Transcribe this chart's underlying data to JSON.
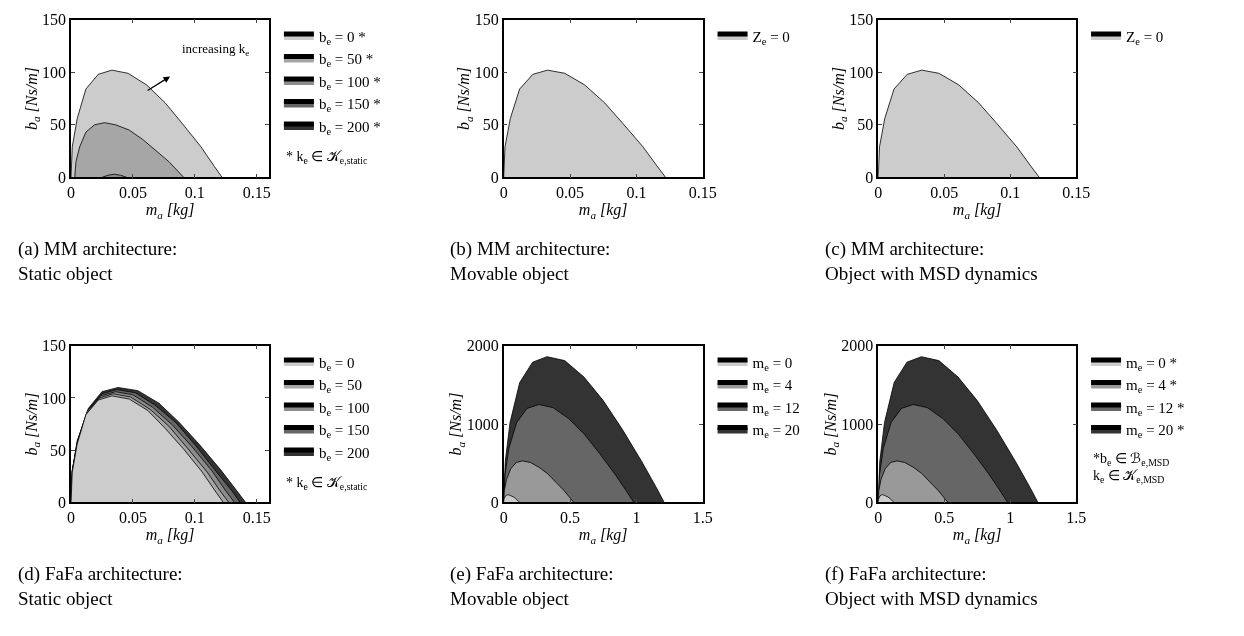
{
  "chart_data": [
    {
      "type": "area",
      "title": "(a) MM architecture: Static object",
      "xlabel": "m$_{a}$ [kg]",
      "ylabel": "b$_{a}$ [Ns/m]",
      "xlim": [
        0,
        0.16
      ],
      "ylim": [
        0,
        150
      ],
      "xticks": [
        0,
        0.05,
        0.1,
        0.15
      ],
      "yticks": [
        0,
        50,
        100,
        150
      ],
      "legend": "right",
      "series": [
        {
          "name": "b$_{e}$ = 0 *",
          "color": "#cccccc",
          "x": [
            0,
            0.001,
            0.005,
            0.012,
            0.022,
            0.033,
            0.046,
            0.061,
            0.076,
            0.09,
            0.105,
            0.116,
            0.122
          ],
          "values": [
            0,
            29,
            56,
            84,
            98,
            102,
            99,
            88,
            71,
            51,
            29,
            10,
            0
          ]
        },
        {
          "name": "b$_{e}$ = 50 *",
          "color": "#a6a6a6",
          "x": [
            0.003,
            0.004,
            0.007,
            0.012,
            0.019,
            0.027,
            0.036,
            0.047,
            0.058,
            0.068,
            0.079,
            0.087,
            0.091
          ],
          "values": [
            0,
            15,
            29,
            43,
            50,
            52,
            50,
            45,
            36,
            26,
            15,
            5,
            0
          ]
        },
        {
          "name": "b$_{e}$ = 100 *",
          "color": "#8c8c8c",
          "x": [
            0.025,
            0.03,
            0.035,
            0.04,
            0.045
          ],
          "values": [
            0,
            2,
            3,
            2,
            0
          ]
        },
        {
          "name": "b$_{e}$ = 150 *",
          "color": "#666666",
          "values": [
            null
          ]
        },
        {
          "name": "b$_{e}$ = 200 *",
          "color": "#333333",
          "values": [
            null
          ]
        }
      ],
      "annotations": [
        "increasing k$_{e}$",
        "* k$_{e}$ ∈ 𝒦$_{e,static}$"
      ]
    },
    {
      "type": "area",
      "title": "(b) MM architecture: Movable object",
      "xlabel": "m$_{a}$ [kg]",
      "ylabel": "b$_{a}$ [Ns/m]",
      "xlim": [
        0,
        0.15
      ],
      "ylim": [
        0,
        150
      ],
      "xticks": [
        0,
        0.05,
        0.1,
        0.15
      ],
      "yticks": [
        0,
        50,
        100,
        150
      ],
      "legend": "right",
      "series": [
        {
          "name": "Z$_{e}$ = 0",
          "color": "#cccccc",
          "x": [
            0,
            0.001,
            0.005,
            0.012,
            0.022,
            0.033,
            0.046,
            0.061,
            0.076,
            0.09,
            0.105,
            0.116,
            0.122
          ],
          "values": [
            0,
            29,
            56,
            84,
            98,
            102,
            99,
            88,
            71,
            51,
            29,
            10,
            0
          ]
        }
      ]
    },
    {
      "type": "area",
      "title": "(c) MM architecture: Object with MSD dynamics",
      "xlabel": "m$_{a}$ [kg]",
      "ylabel": "b$_{a}$ [Ns/m]",
      "xlim": [
        0,
        0.15
      ],
      "ylim": [
        0,
        150
      ],
      "xticks": [
        0,
        0.05,
        0.1,
        0.15
      ],
      "yticks": [
        0,
        50,
        100,
        150
      ],
      "legend": "right",
      "series": [
        {
          "name": "Z$_{e}$ = 0",
          "color": "#cccccc",
          "x": [
            0,
            0.001,
            0.005,
            0.012,
            0.022,
            0.033,
            0.046,
            0.061,
            0.076,
            0.09,
            0.105,
            0.116,
            0.122
          ],
          "values": [
            0,
            29,
            56,
            84,
            98,
            102,
            99,
            88,
            71,
            51,
            29,
            10,
            0
          ]
        }
      ]
    },
    {
      "type": "area",
      "title": "(d) FaFa architecture: Static object",
      "xlabel": "m$_{a}$ [kg]",
      "ylabel": "b$_{a}$ [Ns/m]",
      "xlim": [
        0,
        0.16
      ],
      "ylim": [
        0,
        150
      ],
      "xticks": [
        0,
        0.05,
        0.1,
        0.15
      ],
      "yticks": [
        0,
        50,
        100,
        150
      ],
      "legend": "right",
      "series": [
        {
          "name": "b$_{e}$ = 0",
          "color": "#cccccc",
          "x": [
            0,
            0.001,
            0.005,
            0.012,
            0.022,
            0.033,
            0.047,
            0.062,
            0.076,
            0.091,
            0.106,
            0.117,
            0.123
          ],
          "values": [
            0,
            29,
            56,
            84,
            98,
            102,
            99,
            88,
            71,
            51,
            29,
            10,
            0
          ]
        },
        {
          "name": "b$_{e}$ = 50",
          "color": "#a6a6a6",
          "x": [
            0,
            0.001,
            0.005,
            0.013,
            0.023,
            0.034,
            0.048,
            0.064,
            0.079,
            0.094,
            0.11,
            0.121,
            0.1275
          ],
          "values": [
            0,
            29,
            57,
            85,
            100,
            104,
            101,
            89,
            73,
            52,
            29,
            10,
            0
          ]
        },
        {
          "name": "b$_{e}$ = 100",
          "color": "#8c8c8c",
          "x": [
            0,
            0.001,
            0.005,
            0.013,
            0.024,
            0.036,
            0.05,
            0.066,
            0.082,
            0.098,
            0.114,
            0.125,
            0.132
          ],
          "values": [
            0,
            30,
            58,
            87,
            102,
            106,
            103,
            91,
            74,
            53,
            30,
            11,
            0
          ]
        },
        {
          "name": "b$_{e}$ = 150",
          "color": "#666666",
          "x": [
            0,
            0.001,
            0.005,
            0.014,
            0.025,
            0.037,
            0.052,
            0.068,
            0.085,
            0.101,
            0.117,
            0.13,
            0.1365
          ],
          "values": [
            0,
            30,
            59,
            89,
            104,
            108,
            105,
            93,
            76,
            54,
            30,
            11,
            0
          ]
        },
        {
          "name": "b$_{e}$ = 200",
          "color": "#333333",
          "x": [
            0,
            0.001,
            0.006,
            0.014,
            0.025,
            0.038,
            0.054,
            0.071,
            0.087,
            0.104,
            0.121,
            0.134,
            0.141
          ],
          "values": [
            0,
            31,
            61,
            90,
            106,
            110,
            107,
            95,
            77,
            55,
            31,
            11,
            0
          ]
        }
      ],
      "annotations": [
        "* k$_{e}$ ∈ 𝒦$_{e,static}$"
      ]
    },
    {
      "type": "area",
      "title": "(e) FaFa architecture: Movable object",
      "xlabel": "m$_{a}$ [kg]",
      "ylabel": "b$_{a}$ [Ns/m]",
      "xlim": [
        0,
        1.5
      ],
      "ylim": [
        0,
        2000
      ],
      "xticks": [
        0,
        0.5,
        1,
        1.5
      ],
      "yticks": [
        0,
        1000,
        2000
      ],
      "legend": "right",
      "series": [
        {
          "name": "m$_{e}$ = 0",
          "color": "#cccccc",
          "x": [
            0,
            0.001,
            0.005,
            0.012,
            0.022,
            0.032,
            0.046,
            0.06,
            0.074,
            0.089,
            0.103,
            0.114,
            0.12
          ],
          "values": [
            0,
            30,
            50,
            80,
            90,
            100,
            90,
            80,
            70,
            50,
            30,
            10,
            0
          ]
        },
        {
          "name": "m$_{e}$ = 4",
          "color": "#999999",
          "x": [
            0,
            0.005,
            0.021,
            0.053,
            0.095,
            0.143,
            0.201,
            0.265,
            0.329,
            0.392,
            0.456,
            0.504,
            0.53
          ],
          "values": [
            0,
            150,
            290,
            430,
            510,
            530,
            510,
            450,
            370,
            260,
            150,
            50,
            0
          ]
        },
        {
          "name": "m$_{e}$ = 12",
          "color": "#666666",
          "x": [
            0,
            0.01,
            0.039,
            0.098,
            0.176,
            0.265,
            0.372,
            0.49,
            0.608,
            0.725,
            0.843,
            0.931,
            0.98
          ],
          "values": [
            0,
            350,
            690,
            1020,
            1200,
            1250,
            1210,
            1070,
            870,
            620,
            350,
            130,
            0
          ]
        },
        {
          "name": "m$_{e}$ = 20",
          "color": "#333333",
          "x": [
            0,
            0.012,
            0.048,
            0.121,
            0.218,
            0.327,
            0.46,
            0.605,
            0.75,
            0.895,
            1.041,
            1.15,
            1.21
          ],
          "values": [
            0,
            520,
            1020,
            1530,
            1790,
            1860,
            1810,
            1600,
            1300,
            930,
            520,
            190,
            0
          ]
        }
      ]
    },
    {
      "type": "area",
      "title": "(f) FaFa architecture: Object with MSD dynamics",
      "xlabel": "m$_{a}$ [kg]",
      "ylabel": "b$_{a}$ [Ns/m]",
      "xlim": [
        0,
        1.5
      ],
      "ylim": [
        0,
        2000
      ],
      "xticks": [
        0,
        0.5,
        1,
        1.5
      ],
      "yticks": [
        0,
        1000,
        2000
      ],
      "legend": "right",
      "series": [
        {
          "name": "m$_{e}$ = 0 *",
          "color": "#cccccc",
          "x": [
            0,
            0.001,
            0.005,
            0.012,
            0.022,
            0.032,
            0.046,
            0.06,
            0.074,
            0.089,
            0.103,
            0.114,
            0.12
          ],
          "values": [
            0,
            30,
            50,
            80,
            90,
            100,
            90,
            80,
            70,
            50,
            30,
            10,
            0
          ]
        },
        {
          "name": "m$_{e}$ = 4 *",
          "color": "#999999",
          "x": [
            0,
            0.005,
            0.021,
            0.053,
            0.095,
            0.143,
            0.201,
            0.265,
            0.329,
            0.392,
            0.456,
            0.504,
            0.53
          ],
          "values": [
            0,
            150,
            290,
            430,
            510,
            530,
            510,
            450,
            370,
            260,
            150,
            50,
            0
          ]
        },
        {
          "name": "m$_{e}$ = 12 *",
          "color": "#666666",
          "x": [
            0,
            0.01,
            0.039,
            0.098,
            0.176,
            0.265,
            0.372,
            0.49,
            0.608,
            0.725,
            0.843,
            0.931,
            0.98
          ],
          "values": [
            0,
            350,
            690,
            1020,
            1200,
            1250,
            1210,
            1070,
            870,
            620,
            350,
            130,
            0
          ]
        },
        {
          "name": "m$_{e}$ = 20 *",
          "color": "#333333",
          "x": [
            0,
            0.012,
            0.048,
            0.121,
            0.218,
            0.327,
            0.46,
            0.605,
            0.75,
            0.895,
            1.041,
            1.15,
            1.21
          ],
          "values": [
            0,
            520,
            1020,
            1530,
            1790,
            1860,
            1810,
            1600,
            1300,
            930,
            520,
            190,
            0
          ]
        }
      ],
      "annotations": [
        "*b$_{e}$ ∈ ℬ$_{e,MSD}$",
        "k$_{e}$ ∈ 𝒦$_{e,MSD}$"
      ]
    }
  ]
}
